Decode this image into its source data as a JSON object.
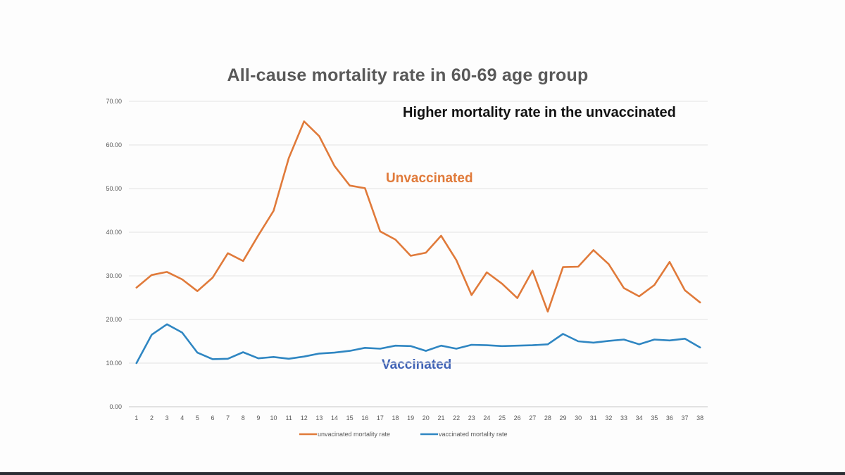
{
  "chart_data": {
    "type": "line",
    "title": "All-cause mortality rate in 60-69 age group",
    "subtitle": "Higher mortality rate in the unvaccinated",
    "annotations": [
      {
        "text": "Unvaccinated",
        "color": "#e07a3a"
      },
      {
        "text": "Vaccinated",
        "color": "#3f62b5"
      }
    ],
    "x": [
      1,
      2,
      3,
      4,
      5,
      6,
      7,
      8,
      9,
      10,
      11,
      12,
      13,
      14,
      15,
      16,
      17,
      18,
      19,
      20,
      21,
      22,
      23,
      24,
      25,
      26,
      27,
      28,
      29,
      30,
      31,
      32,
      33,
      34,
      35,
      36,
      37,
      38
    ],
    "ylim": [
      0,
      70
    ],
    "yticks": [
      "0.00",
      "10.00",
      "20.00",
      "30.00",
      "40.00",
      "50.00",
      "60.00",
      "70.00"
    ],
    "grid": true,
    "legend_position": "bottom",
    "series": [
      {
        "name": "unvacinated mortality rate",
        "color": "#e07a3a",
        "values": [
          27.3,
          30.2,
          30.9,
          29.2,
          26.5,
          29.6,
          35.2,
          33.4,
          39.3,
          44.9,
          57.0,
          65.4,
          62.0,
          55.2,
          50.7,
          50.1,
          40.2,
          38.3,
          34.6,
          35.3,
          39.2,
          33.6,
          25.6,
          30.8,
          28.2,
          24.9,
          31.2,
          21.8,
          32.0,
          32.1,
          35.9,
          32.7,
          27.2,
          25.3,
          27.9,
          33.2,
          26.7,
          23.9
        ]
      },
      {
        "name": "vaccinated mortality rate",
        "color": "#2f86c2",
        "values": [
          10.0,
          16.5,
          18.9,
          17.0,
          12.4,
          10.9,
          11.0,
          12.5,
          11.1,
          11.4,
          11.0,
          11.5,
          12.2,
          12.4,
          12.8,
          13.5,
          13.3,
          14.0,
          13.9,
          12.8,
          14.0,
          13.3,
          14.2,
          14.1,
          13.9,
          14.0,
          14.1,
          14.3,
          16.7,
          15.0,
          14.7,
          15.1,
          15.4,
          14.3,
          15.4,
          15.2,
          15.6,
          13.6
        ]
      }
    ]
  }
}
